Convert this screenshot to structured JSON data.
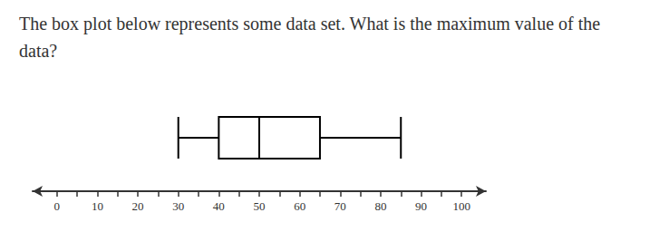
{
  "chart_data": {
    "type": "boxplot",
    "title": "The box plot below represents some data set. What is the maximum value of the data?",
    "orientation": "horizontal",
    "values": [
      30,
      40,
      50,
      65,
      85
    ],
    "color": "#000000",
    "xlim": [
      -6,
      106
    ],
    "xticks": [
      0,
      10,
      20,
      30,
      40,
      50,
      60,
      70,
      80,
      90,
      100
    ],
    "grid": false,
    "tick_labels": "x"
  }
}
